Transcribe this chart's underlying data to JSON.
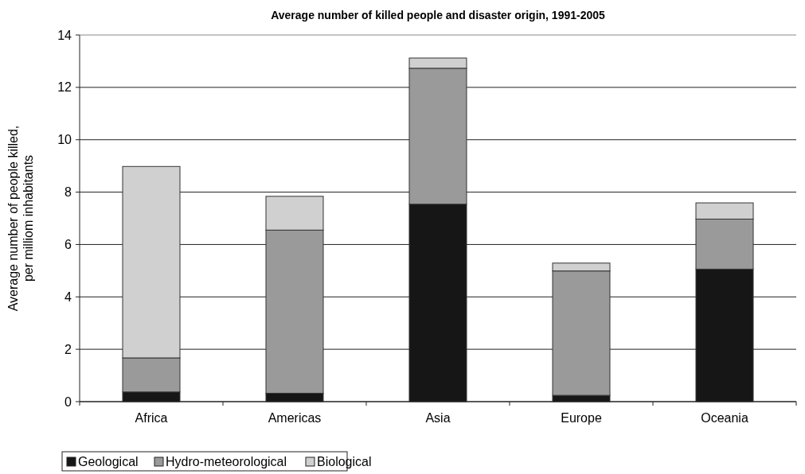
{
  "chart_data": {
    "type": "bar",
    "title": "Average number of killed people and disaster origin, 1991-2005",
    "ylabel": "Average number of people killed, per milliom inhabitants",
    "categories": [
      "Africa",
      "Americas",
      "Asia",
      "Europe",
      "Oceania"
    ],
    "stacked": true,
    "ylim": [
      0,
      14
    ],
    "yticks": [
      0,
      2,
      4,
      6,
      8,
      10,
      12,
      14
    ],
    "grid": "y",
    "legend": "bottom left",
    "series": [
      {
        "name": "Geological",
        "color": "#161616",
        "values": [
          0.37,
          0.32,
          7.54,
          0.24,
          5.06
        ]
      },
      {
        "name": "Hydro-meteorological",
        "color": "#9a9a9a",
        "values": [
          1.3,
          6.23,
          5.19,
          4.75,
          1.91
        ]
      },
      {
        "name": "Biological",
        "color": "#d0d0d0",
        "values": [
          7.31,
          1.29,
          0.39,
          0.3,
          0.62
        ]
      }
    ]
  }
}
